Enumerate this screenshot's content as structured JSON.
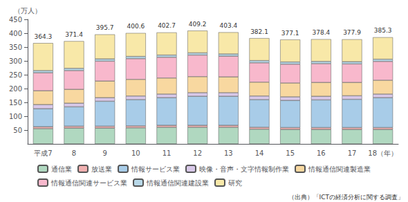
{
  "chart_data": {
    "type": "bar",
    "stacked": true,
    "categories": [
      "平成7",
      "8",
      "9",
      "10",
      "11",
      "12",
      "13",
      "14",
      "15",
      "16",
      "17",
      "18（年）"
    ],
    "series": [
      {
        "name": "通信業",
        "color": "#b0d8c0",
        "values": [
          55,
          57,
          57,
          58,
          60,
          60,
          60,
          53,
          52,
          52,
          52,
          52
        ]
      },
      {
        "name": "放送業",
        "color": "#f0b0b0",
        "values": [
          7,
          7,
          7,
          7,
          7,
          7,
          7,
          7,
          7,
          7,
          7,
          7
        ]
      },
      {
        "name": "情報サービス業",
        "color": "#a8cce8",
        "values": [
          65,
          70,
          90,
          95,
          100,
          105,
          105,
          100,
          98,
          100,
          102,
          108
        ]
      },
      {
        "name": "映像・音声・文字情報制作業",
        "color": "#d8c8e8",
        "values": [
          15,
          13,
          13,
          13,
          13,
          13,
          13,
          13,
          13,
          13,
          13,
          13
        ]
      },
      {
        "name": "情報通信関連製造業",
        "color": "#f8d8a0",
        "values": [
          50,
          50,
          60,
          60,
          58,
          58,
          57,
          50,
          50,
          50,
          48,
          50
        ]
      },
      {
        "name": "情報通信関連サービス業",
        "color": "#f8b8cc",
        "values": [
          65,
          68,
          72,
          75,
          75,
          78,
          75,
          70,
          68,
          68,
          67,
          68
        ]
      },
      {
        "name": "情報通信関連建設業",
        "color": "#b8d8e8",
        "values": [
          8,
          8,
          8,
          8,
          8,
          8,
          8,
          8,
          8,
          8,
          8,
          8
        ]
      },
      {
        "name": "研究",
        "color": "#f8e8a8",
        "values": [
          99.3,
          98.4,
          88.7,
          84.6,
          81.7,
          80.2,
          78.4,
          81.1,
          81.1,
          80.4,
          80.9,
          79.3
        ]
      }
    ],
    "totals": [
      364.3,
      371.4,
      395.7,
      400.6,
      402.7,
      409.2,
      403.4,
      382.1,
      377.1,
      378.4,
      377.9,
      385.3
    ],
    "ylabel": "（万人）",
    "ylim": [
      0,
      450
    ],
    "yticks": [
      50,
      100,
      150,
      200,
      250,
      300,
      350,
      400,
      450
    ],
    "grid": false,
    "legend": "bottom",
    "annotations": [
      "（出典）「ICTの経済分析に関する調査」"
    ]
  }
}
